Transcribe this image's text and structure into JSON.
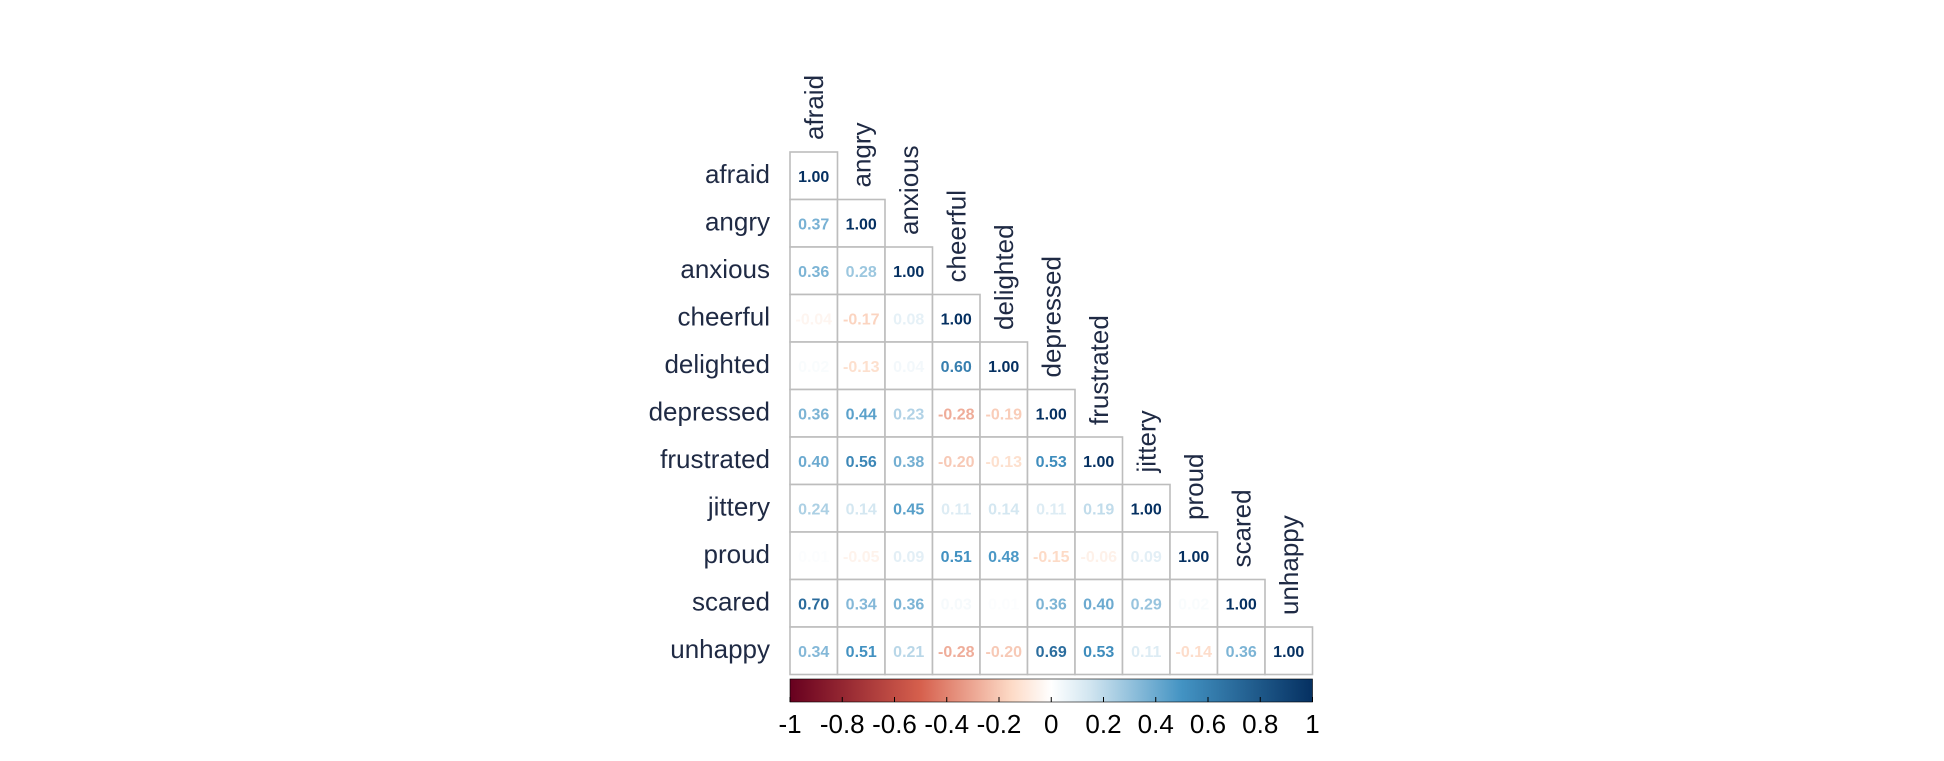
{
  "chart_data": {
    "type": "heatmap",
    "variables": [
      "afraid",
      "angry",
      "anxious",
      "cheerful",
      "delighted",
      "depressed",
      "frustrated",
      "jittery",
      "proud",
      "scared",
      "unhappy"
    ],
    "matrix_lower": [
      [
        1.0
      ],
      [
        0.37,
        1.0
      ],
      [
        0.36,
        0.28,
        1.0
      ],
      [
        -0.04,
        -0.17,
        0.08,
        1.0
      ],
      [
        0.02,
        -0.13,
        0.04,
        0.6,
        1.0
      ],
      [
        0.36,
        0.44,
        0.23,
        -0.28,
        -0.19,
        1.0
      ],
      [
        0.4,
        0.56,
        0.38,
        -0.2,
        -0.13,
        0.53,
        1.0
      ],
      [
        0.24,
        0.14,
        0.45,
        0.11,
        0.14,
        0.11,
        0.19,
        1.0
      ],
      [
        0.01,
        -0.05,
        0.09,
        0.51,
        0.48,
        -0.15,
        -0.06,
        0.09,
        1.0
      ],
      [
        0.7,
        0.34,
        0.36,
        0.03,
        0.01,
        0.36,
        0.4,
        0.29,
        0.02,
        1.0
      ],
      [
        0.34,
        0.51,
        0.21,
        -0.28,
        -0.2,
        0.69,
        0.53,
        0.11,
        -0.14,
        0.36,
        1.0
      ]
    ],
    "colorbar": {
      "range": [
        -1,
        1
      ],
      "tick_labels": [
        "-1",
        "-0.8",
        "-0.6",
        "-0.4",
        "-0.2",
        "0",
        "0.2",
        "0.4",
        "0.6",
        "0.8",
        "1"
      ],
      "tick_values": [
        -1,
        -0.8,
        -0.6,
        -0.4,
        -0.2,
        0,
        0.2,
        0.4,
        0.6,
        0.8,
        1
      ],
      "colors": {
        "neg_strong": "#67001F",
        "neg_mid": "#D6604D",
        "neg_light": "#FDDBC7",
        "zero": "#FFFFFF",
        "pos_light": "#D1E5F0",
        "pos_mid": "#4393C3",
        "pos_strong": "#053061"
      }
    },
    "label_color": "#1f2a44",
    "grid_color": "#bdbdbd"
  }
}
